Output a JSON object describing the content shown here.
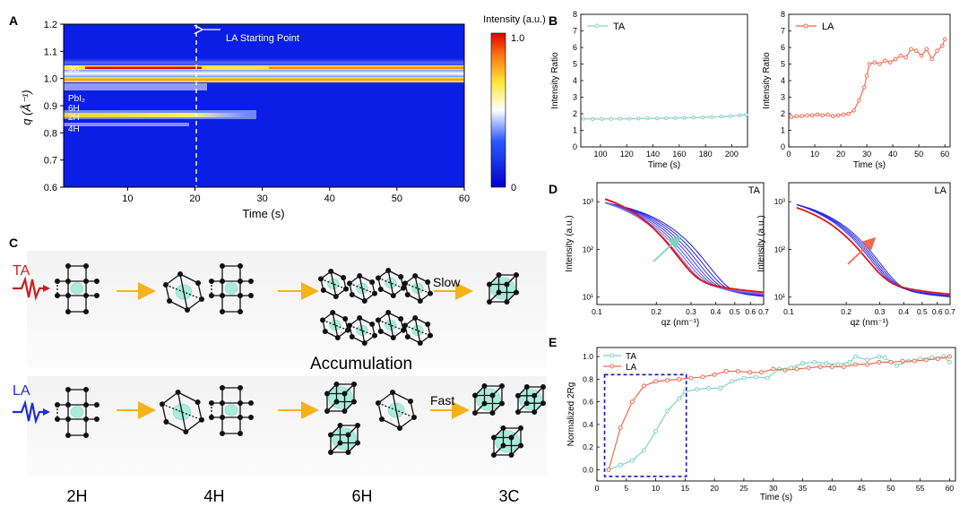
{
  "panels": {
    "a": "A",
    "b": "B",
    "c": "C",
    "d": "D",
    "e": "E"
  },
  "panel_a": {
    "ylabel": "q (Å⁻¹)",
    "xlabel": "Time (s)",
    "xticks": [
      "10",
      "20",
      "30",
      "40",
      "50",
      "60"
    ],
    "yticks": [
      "1.2",
      "1.1",
      "1.0",
      "0.9",
      "0.8",
      "0.7",
      "0.6"
    ],
    "colorbar_title": "Intensity (a.u.)",
    "colorbar_max": "1.0",
    "colorbar_min": "0",
    "arrow_label": "LA Starting Point",
    "phase_labels": [
      "3C",
      "PbI₂",
      "6H",
      "2H",
      "4H"
    ]
  },
  "panel_c": {
    "ta_label": "TA",
    "la_label": "LA",
    "slow": "Slow",
    "fast": "Fast",
    "accumulation": "Accumulation",
    "phases": [
      "2H",
      "4H",
      "6H",
      "3C"
    ]
  },
  "chart_data": [
    {
      "id": "B-TA",
      "type": "line",
      "legend": "TA",
      "xlabel": "Time (s)",
      "ylabel": "Intensity Ratio",
      "xlim": [
        85,
        212
      ],
      "ylim": [
        0,
        8
      ],
      "xticks": [
        100,
        120,
        140,
        160,
        180,
        200
      ],
      "yticks": [
        0,
        1,
        2,
        3,
        4,
        5,
        6,
        7,
        8
      ],
      "color": "#7fd3bf",
      "x": [
        87,
        94,
        101,
        108,
        115,
        122,
        129,
        136,
        143,
        150,
        157,
        164,
        171,
        178,
        185,
        192,
        199,
        206,
        211
      ],
      "y": [
        1.7,
        1.68,
        1.68,
        1.69,
        1.7,
        1.7,
        1.71,
        1.72,
        1.72,
        1.73,
        1.74,
        1.75,
        1.77,
        1.78,
        1.8,
        1.83,
        1.86,
        1.9,
        1.95
      ]
    },
    {
      "id": "B-LA",
      "type": "line",
      "legend": "LA",
      "xlabel": "Time (s)",
      "ylabel": "Intensity Ratio",
      "xlim": [
        0,
        62
      ],
      "ylim": [
        0,
        8
      ],
      "xticks": [
        0,
        10,
        20,
        30,
        40,
        50,
        60
      ],
      "yticks": [
        0,
        1,
        2,
        3,
        4,
        5,
        6,
        7,
        8
      ],
      "color": "#f26b4f",
      "x": [
        1,
        3,
        5,
        7,
        9,
        11,
        13,
        15,
        17,
        19,
        21,
        23,
        25,
        27,
        29,
        30,
        31,
        33,
        35,
        37,
        39,
        41,
        43,
        45,
        47,
        49,
        51,
        53,
        55,
        57,
        59,
        60
      ],
      "y": [
        1.8,
        1.85,
        1.85,
        1.9,
        1.9,
        1.95,
        1.9,
        1.95,
        1.85,
        1.9,
        1.95,
        2.0,
        2.2,
        2.8,
        3.6,
        4.3,
        5.0,
        5.1,
        5.0,
        5.2,
        5.1,
        5.3,
        5.5,
        5.4,
        5.9,
        5.8,
        5.5,
        5.9,
        5.3,
        5.8,
        6.1,
        6.5
      ]
    },
    {
      "id": "D-TA",
      "type": "line",
      "legend": "TA",
      "xlabel": "qz (nm⁻¹)",
      "ylabel": "Intensity (a.u.)",
      "xscale": "log",
      "yscale": "log",
      "xlim": [
        0.1,
        0.7
      ],
      "ylim": [
        7,
        2500
      ],
      "xticks": [
        0.1,
        0.2,
        0.3,
        0.4,
        0.5,
        0.6,
        0.7
      ],
      "yticks": [
        10,
        100,
        1000
      ],
      "xtick_labels": [
        "0.1",
        "0.2",
        "0.3",
        "0.4",
        "0.5",
        "0.6",
        "0.7"
      ],
      "ytick_labels": [
        "10¹",
        "10²",
        "10³"
      ],
      "arrow_color": "#7fd3bf"
    },
    {
      "id": "D-LA",
      "type": "line",
      "legend": "LA",
      "xlabel": "qz (nm⁻¹)",
      "ylabel": "Intensity (a.u.)",
      "xscale": "log",
      "yscale": "log",
      "xlim": [
        0.1,
        0.7
      ],
      "ylim": [
        7,
        2500
      ],
      "xticks": [
        0.1,
        0.2,
        0.3,
        0.4,
        0.5,
        0.6,
        0.7
      ],
      "yticks": [
        10,
        100,
        1000
      ],
      "xtick_labels": [
        "0.1",
        "0.2",
        "0.3",
        "0.4",
        "0.5",
        "0.6",
        "0.7"
      ],
      "ytick_labels": [
        "10¹",
        "10²",
        "10³"
      ],
      "arrow_color": "#f26b4f"
    },
    {
      "id": "E",
      "type": "line",
      "xlabel": "Time (s)",
      "ylabel": "Normalized 2Rg",
      "xlim": [
        0,
        61
      ],
      "ylim": [
        -0.1,
        1.08
      ],
      "xticks": [
        0,
        5,
        10,
        15,
        20,
        25,
        30,
        35,
        40,
        45,
        50,
        55,
        60
      ],
      "yticks": [
        0.0,
        0.2,
        0.4,
        0.6,
        0.8,
        1.0
      ],
      "series": [
        {
          "name": "TA",
          "color": "#7fd3bf",
          "x": [
            2,
            4,
            6,
            8,
            10,
            12,
            14,
            15,
            17,
            19,
            21,
            23,
            25,
            27,
            29,
            31,
            33,
            35,
            37,
            39,
            41,
            43,
            44,
            46,
            48,
            49,
            51,
            53,
            55,
            57,
            59,
            60
          ],
          "y": [
            0.0,
            0.04,
            0.08,
            0.17,
            0.34,
            0.52,
            0.63,
            0.69,
            0.71,
            0.72,
            0.72,
            0.78,
            0.81,
            0.82,
            0.81,
            0.89,
            0.9,
            0.94,
            0.95,
            0.94,
            0.93,
            0.95,
            1.0,
            0.97,
            1.0,
            0.99,
            0.92,
            0.96,
            0.98,
            0.99,
            1.0,
            0.95
          ]
        },
        {
          "name": "LA",
          "color": "#f26b4f",
          "x": [
            2,
            4,
            6,
            8,
            10,
            12,
            14,
            16,
            18,
            20,
            22,
            24,
            26,
            28,
            30,
            32,
            34,
            36,
            38,
            40,
            42,
            44,
            46,
            48,
            50,
            52,
            54,
            56,
            58,
            60
          ],
          "y": [
            0.0,
            0.37,
            0.6,
            0.74,
            0.78,
            0.79,
            0.8,
            0.81,
            0.82,
            0.84,
            0.87,
            0.87,
            0.86,
            0.86,
            0.89,
            0.88,
            0.89,
            0.9,
            0.91,
            0.91,
            0.91,
            0.93,
            0.93,
            0.95,
            0.95,
            0.96,
            0.96,
            0.97,
            0.98,
            1.0
          ]
        }
      ]
    }
  ]
}
